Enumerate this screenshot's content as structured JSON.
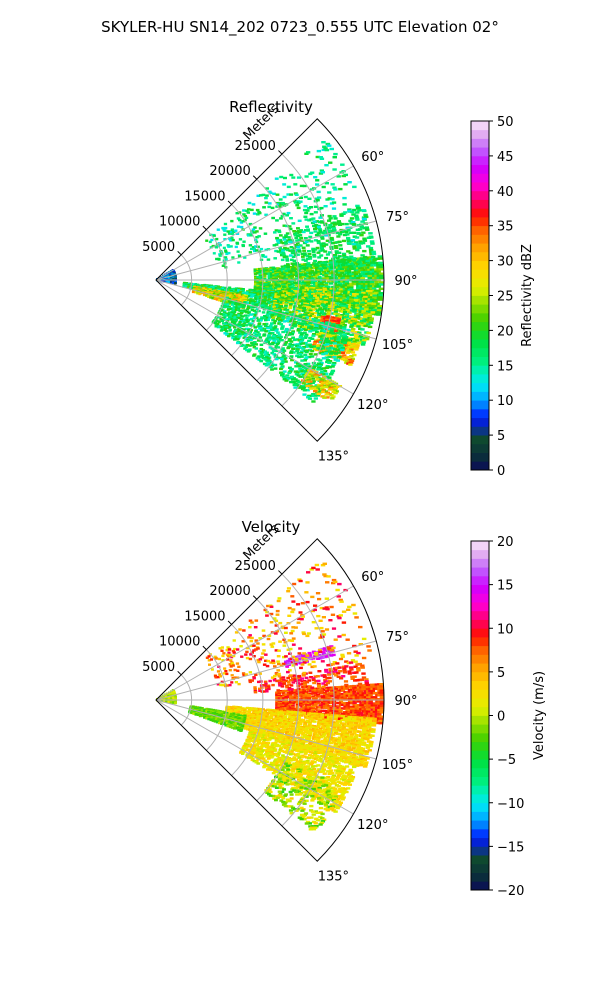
{
  "figure": {
    "title": "SKYLER-HU  SN14_202  0723_0.555 UTC Elevation 02°"
  },
  "chart_data": [
    {
      "type": "heatmap",
      "kind": "polar-sector",
      "title": "Reflectivity",
      "range_label": "Meters",
      "range_ticks": [
        5000,
        10000,
        15000,
        20000,
        25000
      ],
      "range_tick_labels": [
        "5000",
        "10000",
        "15000",
        "20000",
        "25000"
      ],
      "range_max": 32000,
      "azimuth_ticks": [
        60,
        75,
        90,
        105,
        120,
        135
      ],
      "azimuth_tick_labels": [
        "60°",
        "75°",
        "90°",
        "105°",
        "120°",
        "135°"
      ],
      "azimuth_range": [
        45,
        135
      ],
      "grid": true,
      "colorbar": {
        "label": "Reflectivity dBZ",
        "min": 0,
        "max": 50,
        "ticks": [
          0,
          5,
          10,
          15,
          20,
          25,
          30,
          35,
          40,
          45,
          50
        ],
        "tick_labels": [
          "0",
          "5",
          "10",
          "15",
          "20",
          "25",
          "30",
          "35",
          "40",
          "45",
          "50"
        ]
      },
      "regions": [
        {
          "az": [
            84,
            99
          ],
          "r": [
            14000,
            31800
          ],
          "value": 20,
          "spread": 5,
          "density": 0.78
        },
        {
          "az": [
            96,
            104
          ],
          "r": [
            4000,
            18000
          ],
          "value": 18,
          "spread": 5,
          "density": 0.6
        },
        {
          "az": [
            100,
            108
          ],
          "r": [
            5500,
            13000
          ],
          "value": 27,
          "spread": 6,
          "density": 0.72
        },
        {
          "az": [
            93,
            108
          ],
          "r": [
            17000,
            31000
          ],
          "value": 22,
          "spread": 7,
          "density": 0.55
        },
        {
          "az": [
            102,
            106
          ],
          "r": [
            24000,
            26500
          ],
          "value": 35,
          "spread": 3,
          "density": 0.9
        },
        {
          "az": [
            108,
            114
          ],
          "r": [
            24000,
            30000
          ],
          "value": 30,
          "spread": 6,
          "density": 0.6
        },
        {
          "az": [
            104,
            128
          ],
          "r": [
            10000,
            28000
          ],
          "value": 17,
          "spread": 4,
          "density": 0.35
        },
        {
          "az": [
            70,
            86
          ],
          "r": [
            18000,
            31000
          ],
          "value": 18,
          "spread": 3,
          "density": 0.25
        },
        {
          "az": [
            50,
            80
          ],
          "r": [
            9000,
            31000
          ],
          "value": 16,
          "spread": 4,
          "density": 0.09
        },
        {
          "az": [
            60,
            100
          ],
          "r": [
            200,
            3000
          ],
          "value": 8,
          "spread": 5,
          "density": 0.55
        },
        {
          "az": [
            120,
            125
          ],
          "r": [
            25000,
            30000
          ],
          "value": 28,
          "spread": 6,
          "density": 0.5
        }
      ]
    },
    {
      "type": "heatmap",
      "kind": "polar-sector",
      "title": "Velocity",
      "range_label": "Meters",
      "range_ticks": [
        5000,
        10000,
        15000,
        20000,
        25000
      ],
      "range_tick_labels": [
        "5000",
        "10000",
        "15000",
        "20000",
        "25000"
      ],
      "range_max": 32000,
      "azimuth_ticks": [
        60,
        75,
        90,
        105,
        120,
        135
      ],
      "azimuth_tick_labels": [
        "60°",
        "75°",
        "90°",
        "105°",
        "120°",
        "135°"
      ],
      "azimuth_range": [
        45,
        135
      ],
      "grid": true,
      "colorbar": {
        "label": "Velocity (m/s)",
        "min": -20,
        "max": 20,
        "ticks": [
          -20,
          -15,
          -10,
          -5,
          0,
          5,
          10,
          15,
          20
        ],
        "tick_labels": [
          "−20",
          "−15",
          "−10",
          "−5",
          "0",
          "5",
          "10",
          "15",
          "20"
        ]
      },
      "regions": [
        {
          "az": [
            86,
            96
          ],
          "r": [
            17000,
            31800
          ],
          "value": 8,
          "spread": 2,
          "density": 0.82
        },
        {
          "az": [
            95,
            108
          ],
          "r": [
            10000,
            31000
          ],
          "value": 3,
          "spread": 2,
          "density": 0.72
        },
        {
          "az": [
            100,
            110
          ],
          "r": [
            5000,
            13000
          ],
          "value": -2,
          "spread": 2,
          "density": 0.7
        },
        {
          "az": [
            107,
            122
          ],
          "r": [
            14000,
            30000
          ],
          "value": 2,
          "spread": 2,
          "density": 0.55
        },
        {
          "az": [
            80,
            86
          ],
          "r": [
            14000,
            30000
          ],
          "value": 9,
          "spread": 3,
          "density": 0.3
        },
        {
          "az": [
            73,
            76
          ],
          "r": [
            19000,
            26000
          ],
          "value": 15,
          "spread": 2,
          "density": 0.55
        },
        {
          "az": [
            50,
            80
          ],
          "r": [
            9000,
            31000
          ],
          "value": 6,
          "spread": 5,
          "density": 0.09
        },
        {
          "az": [
            60,
            100
          ],
          "r": [
            200,
            3000
          ],
          "value": 0,
          "spread": 2,
          "density": 0.5
        },
        {
          "az": [
            115,
            130
          ],
          "r": [
            20000,
            29000
          ],
          "value": 0,
          "spread": 4,
          "density": 0.3
        }
      ]
    }
  ]
}
